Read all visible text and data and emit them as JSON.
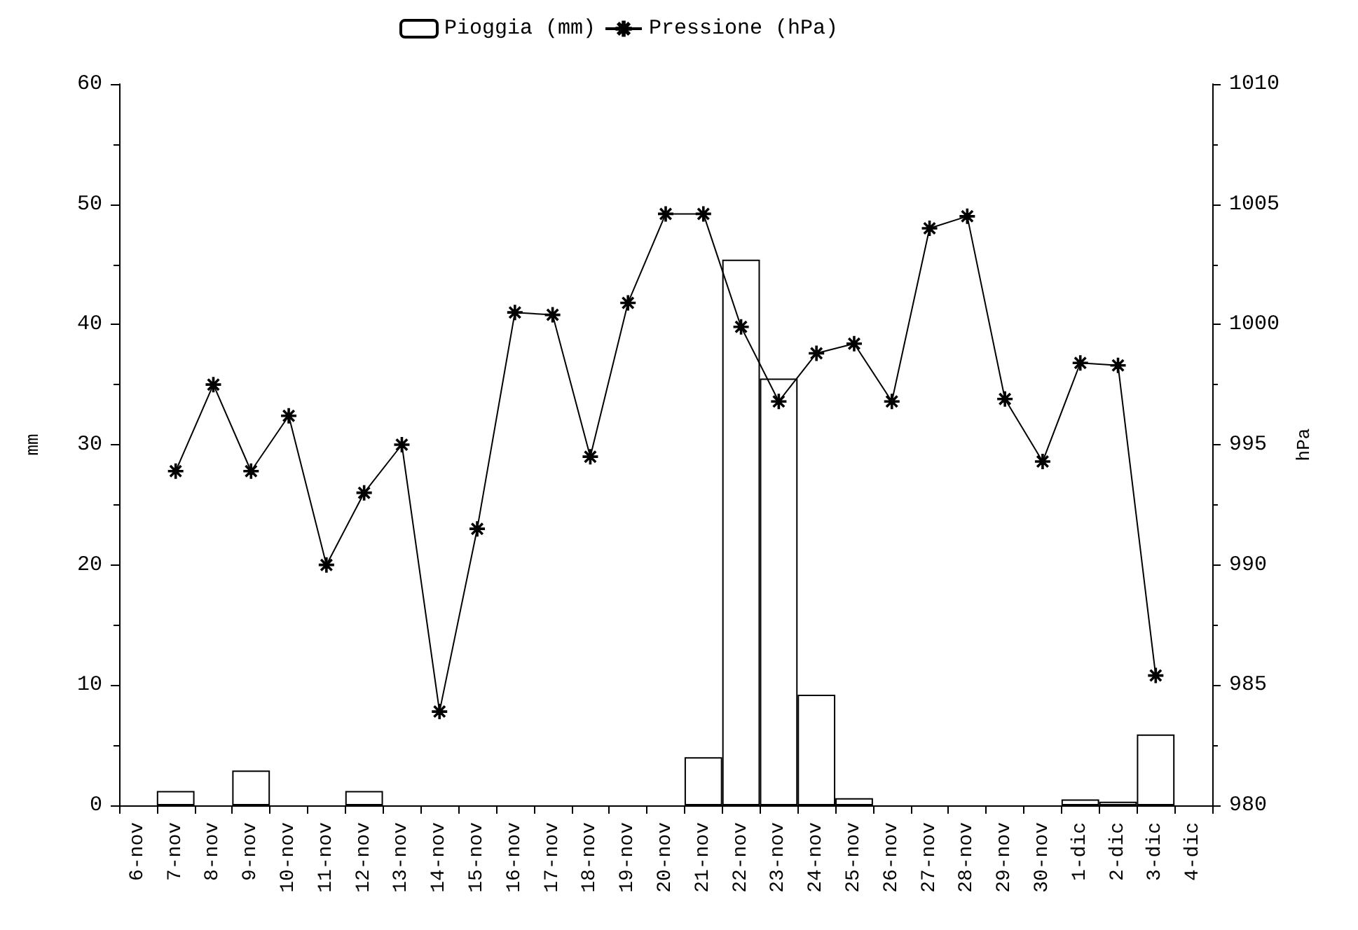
{
  "chart_data": {
    "type": "bar",
    "ylabel": "mm",
    "y2label": "hPa",
    "legend": "top",
    "grid": false,
    "categories": [
      "6-nov",
      "7-nov",
      "8-nov",
      "9-nov",
      "10-nov",
      "11-nov",
      "12-nov",
      "13-nov",
      "14-nov",
      "15-nov",
      "16-nov",
      "17-nov",
      "18-nov",
      "19-nov",
      "20-nov",
      "21-nov",
      "22-nov",
      "23-nov",
      "24-nov",
      "25-nov",
      "26-nov",
      "27-nov",
      "28-nov",
      "29-nov",
      "30-nov",
      "1-dic",
      "2-dic",
      "3-dic",
      "4-dic"
    ],
    "ylim": [
      0,
      60
    ],
    "yticks": [
      0,
      10,
      20,
      30,
      40,
      50,
      60
    ],
    "y2lim": [
      980,
      1010
    ],
    "y2ticks": [
      980,
      985,
      990,
      995,
      {
        "value": 1000,
        "label": "1000"
      },
      {
        "value": 1005,
        "label": "1005"
      },
      {
        "value": 1010,
        "label": "1010"
      }
    ],
    "series": [
      {
        "name": "Pioggia (mm)",
        "color": "#ffffff",
        "values": [
          0,
          1.2,
          0,
          2.9,
          0,
          0,
          1.2,
          0,
          0,
          0,
          0,
          0,
          0,
          0,
          0,
          4,
          45.4,
          35.5,
          9.2,
          0.6,
          0,
          0,
          0,
          0,
          0,
          0.5,
          0.3,
          5.9,
          0
        ]
      },
      {
        "name": "Pressione (hPa)",
        "type": "line",
        "axis": "y2",
        "color": "#000000",
        "marker": "star",
        "line_style": "solid",
        "values": [
          null,
          993.9,
          997.5,
          993.9,
          996.2,
          990,
          993,
          995,
          983.9,
          991.5,
          1000.5,
          1000.4,
          994.5,
          1000.9,
          1004.6,
          1004.6,
          999.9,
          996.8,
          998.8,
          999.2,
          996.8,
          1004,
          1004.5,
          996.9,
          994.3,
          998.4,
          998.3,
          985.4,
          null
        ]
      }
    ]
  }
}
